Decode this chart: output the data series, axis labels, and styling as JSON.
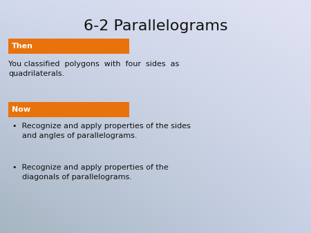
{
  "title": "6-2 Parallelograms",
  "title_fontsize": 16,
  "title_color": "#111111",
  "then_label": "Then",
  "then_text": "You classified  polygons  with  four  sides  as\nquadrilaterals.",
  "now_label": "Now",
  "bullet1_line1": "Recognize and apply properties of the sides",
  "bullet1_line2": "and angles of parallelograms.",
  "bullet2_line1": "Recognize and apply properties of the",
  "bullet2_line2": "diagonals of parallelograms.",
  "orange_color": "#E8720C",
  "label_text_color": "#ffffff",
  "body_text_color": "#111111",
  "label_fontsize": 8,
  "body_fontsize": 8,
  "bullet_fontsize": 8
}
